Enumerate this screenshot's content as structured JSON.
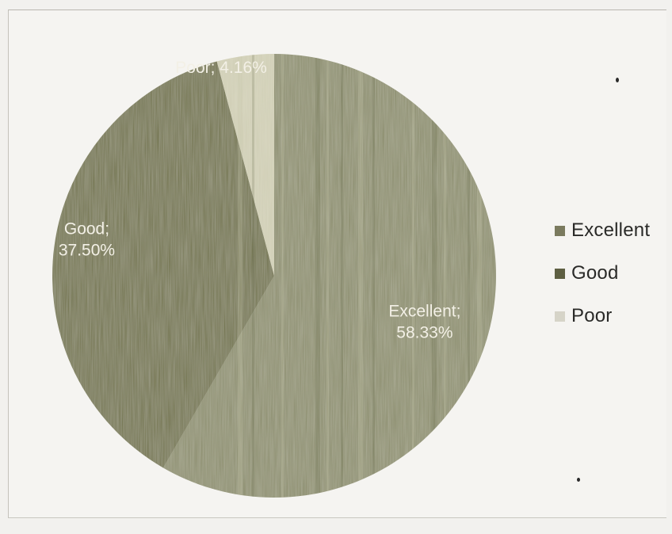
{
  "chart_data": {
    "type": "pie",
    "series": [
      {
        "values": [
          58.33,
          37.5,
          4.16
        ]
      }
    ],
    "categories": [
      "Excellent",
      "Good",
      "Poor"
    ],
    "slices": [
      {
        "category": "Excellent",
        "value": 58.33,
        "label_line1": "Excellent;",
        "label_line2": "58.33%",
        "color": "#8a8c6c"
      },
      {
        "category": "Good",
        "value": 37.5,
        "label_line1": "Good;",
        "label_line2": "37.50%",
        "color": "#6f7148"
      },
      {
        "category": "Poor",
        "value": 4.16,
        "label_line1": "Poor; 4.16%",
        "label_line2": "",
        "color": "#cfcdb4"
      }
    ],
    "legend": {
      "placement": "right",
      "entries": [
        {
          "label": "Excellent",
          "color": "#7a7a5e"
        },
        {
          "label": "Good",
          "color": "#5e5f42"
        },
        {
          "label": "Poor",
          "color": "#d6d4c8"
        }
      ]
    },
    "start_angle_deg": 0,
    "direction": "clockwise"
  }
}
